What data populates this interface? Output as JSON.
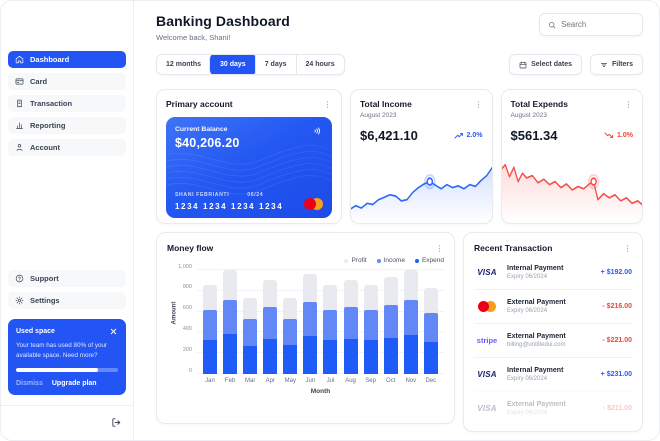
{
  "header": {
    "title": "Banking Dashboard",
    "subtitle": "Welcome back, Shani!",
    "search_placeholder": "Search"
  },
  "filters": {
    "ranges": [
      {
        "label": "12 months",
        "active": false
      },
      {
        "label": "30 days",
        "active": true
      },
      {
        "label": "7 days",
        "active": false
      },
      {
        "label": "24 hours",
        "active": false
      }
    ],
    "select_dates_label": "Select dates",
    "filters_label": "Filters"
  },
  "sidebar": {
    "items": [
      {
        "label": "Dashboard",
        "icon": "home-icon",
        "active": true
      },
      {
        "label": "Card",
        "icon": "credit-card-icon",
        "active": false
      },
      {
        "label": "Transaction",
        "icon": "receipt-icon",
        "active": false
      },
      {
        "label": "Reporting",
        "icon": "bar-chart-icon",
        "active": false
      },
      {
        "label": "Account",
        "icon": "user-icon",
        "active": false
      }
    ],
    "footer_items": [
      {
        "label": "Support",
        "icon": "help-icon",
        "active": false
      },
      {
        "label": "Settings",
        "icon": "gear-icon",
        "active": false
      }
    ],
    "used_space": {
      "title": "Used space",
      "body": "Your team has used 80% of your available space. Need more?",
      "percent": 80,
      "dismiss_label": "Dismiss",
      "upgrade_label": "Upgrade plan"
    }
  },
  "primary_account": {
    "title": "Primary account",
    "card": {
      "balance_label": "Current Balance",
      "balance": "$40,206.20",
      "holder": "SHANI FEBRIANTI",
      "expiry": "06/24",
      "number": "1234 1234 1234 1234",
      "network": "mastercard"
    }
  },
  "total_income": {
    "title": "Total Income",
    "period": "August 2023",
    "value": "$6,421.10",
    "change": "2.0%",
    "direction": "up"
  },
  "total_expends": {
    "title": "Total Expends",
    "period": "August 2023",
    "value": "$561.34",
    "change": "1.0%",
    "direction": "down"
  },
  "money_flow": {
    "title": "Money flow"
  },
  "transactions": {
    "title": "Recent Transaction",
    "rows": [
      {
        "brand": "visa",
        "name": "Internal Payment",
        "detail": "Expiry 06/2024",
        "amount": "+ $192.00",
        "direction": "in",
        "faded": false
      },
      {
        "brand": "mastercard",
        "name": "External Payment",
        "detail": "Expiry 06/2024",
        "amount": "- $216.00",
        "direction": "out",
        "faded": false
      },
      {
        "brand": "stripe",
        "name": "External Payment",
        "detail": "billing@untitledui.com",
        "amount": "- $221.00",
        "direction": "out",
        "faded": false
      },
      {
        "brand": "visa",
        "name": "Internal Payment",
        "detail": "Expiry 06/2024",
        "amount": "+ $231.00",
        "direction": "in",
        "faded": false
      },
      {
        "brand": "visa",
        "name": "External Payment",
        "detail": "Expiry 06/2024",
        "amount": "- $211.00",
        "direction": "out",
        "faded": true
      }
    ]
  },
  "colors": {
    "primary_blue": "#2355f5",
    "income_line": "#2d68f8",
    "expends_line": "#f2504a",
    "positive_amount": "#2b59f5",
    "negative_amount": "#f0443f",
    "bar_profit": "#e9eaf0",
    "bar_income": "#6288f7",
    "bar_expend": "#1f5bf6"
  },
  "chart_data": [
    {
      "type": "bar",
      "title": "Money flow",
      "categories": [
        "Jan",
        "Feb",
        "Mar",
        "Apr",
        "May",
        "Jun",
        "Jul",
        "Aug",
        "Sep",
        "Oct",
        "Nov",
        "Dec"
      ],
      "series": [
        {
          "name": "Profit",
          "color": "#e9eaf0",
          "values": [
            860,
            1000,
            730,
            900,
            730,
            960,
            860,
            900,
            860,
            930,
            1000,
            830
          ]
        },
        {
          "name": "Income",
          "color": "#6288f7",
          "values": [
            620,
            710,
            530,
            640,
            530,
            690,
            620,
            640,
            620,
            660,
            710,
            590
          ]
        },
        {
          "name": "Expend",
          "color": "#1f5bf6",
          "values": [
            330,
            380,
            270,
            340,
            275,
            365,
            330,
            340,
            330,
            350,
            375,
            310
          ]
        }
      ],
      "xlabel": "Month",
      "ylabel": "Amount",
      "ylim": [
        0,
        1000
      ],
      "yticks": [
        "0",
        "200",
        "400",
        "600",
        "800",
        "1,000"
      ],
      "grid": true,
      "legend_position": "top-right"
    },
    {
      "type": "line",
      "title": "Total Income trend (August 2023)",
      "color": "#2d68f8",
      "fill": true,
      "x": [
        0,
        4,
        8,
        12,
        16,
        20,
        24,
        28,
        32,
        36,
        40,
        44,
        48,
        52,
        56,
        60,
        64,
        68,
        72,
        76,
        80,
        84,
        88,
        92,
        96,
        100
      ],
      "y": [
        14,
        20,
        16,
        24,
        22,
        30,
        34,
        38,
        36,
        28,
        30,
        42,
        50,
        56,
        60,
        54,
        48,
        55,
        50,
        53,
        48,
        55,
        52,
        62,
        70,
        84
      ],
      "marker_index": 14
    },
    {
      "type": "line",
      "title": "Total Expends trend (August 2023)",
      "color": "#f2504a",
      "fill": true,
      "x": [
        0,
        3,
        6,
        9,
        12,
        15,
        18,
        22,
        26,
        30,
        34,
        38,
        42,
        46,
        50,
        54,
        58,
        62,
        65,
        68,
        72,
        76,
        80,
        84,
        88,
        92,
        96,
        100
      ],
      "y": [
        80,
        88,
        68,
        84,
        60,
        74,
        66,
        70,
        58,
        64,
        55,
        60,
        50,
        56,
        46,
        52,
        48,
        56,
        60,
        30,
        40,
        33,
        38,
        28,
        33,
        24,
        28,
        20
      ],
      "marker_index": 18
    }
  ]
}
